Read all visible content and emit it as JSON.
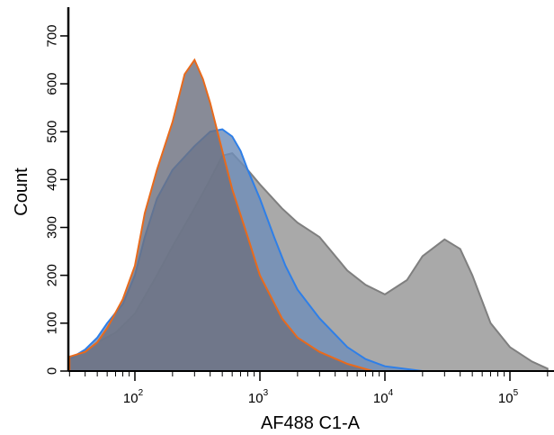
{
  "chart_data": {
    "type": "histogram",
    "xlabel": "AF488 C1-A",
    "ylabel": "Count",
    "x_scale": "log",
    "xlim": [
      30,
      220000
    ],
    "ylim": [
      0,
      760
    ],
    "x_ticks": [
      {
        "value": 100,
        "base": "10",
        "exp": "2"
      },
      {
        "value": 1000,
        "base": "10",
        "exp": "3"
      },
      {
        "value": 10000,
        "base": "10",
        "exp": "4"
      },
      {
        "value": 100000,
        "base": "10",
        "exp": "5"
      }
    ],
    "y_ticks": [
      0,
      100,
      200,
      300,
      400,
      500,
      600,
      700
    ],
    "grid": false,
    "series": [
      {
        "color": "#a9a9a9",
        "stroke": "#7f7f7f",
        "points": [
          [
            30,
            25
          ],
          [
            40,
            40
          ],
          [
            50,
            60
          ],
          [
            70,
            80
          ],
          [
            100,
            120
          ],
          [
            150,
            200
          ],
          [
            200,
            260
          ],
          [
            300,
            340
          ],
          [
            400,
            400
          ],
          [
            500,
            450
          ],
          [
            600,
            455
          ],
          [
            800,
            420
          ],
          [
            1000,
            390
          ],
          [
            1500,
            340
          ],
          [
            2000,
            310
          ],
          [
            3000,
            280
          ],
          [
            5000,
            210
          ],
          [
            7000,
            180
          ],
          [
            10000,
            160
          ],
          [
            15000,
            190
          ],
          [
            20000,
            240
          ],
          [
            30000,
            275
          ],
          [
            40000,
            255
          ],
          [
            50000,
            200
          ],
          [
            70000,
            100
          ],
          [
            100000,
            50
          ],
          [
            150000,
            20
          ],
          [
            200000,
            5
          ]
        ]
      },
      {
        "color": "#6f8db8",
        "stroke": "#2e7fe8",
        "points": [
          [
            30,
            25
          ],
          [
            40,
            45
          ],
          [
            50,
            70
          ],
          [
            60,
            100
          ],
          [
            80,
            140
          ],
          [
            100,
            200
          ],
          [
            120,
            280
          ],
          [
            150,
            360
          ],
          [
            200,
            420
          ],
          [
            300,
            470
          ],
          [
            400,
            500
          ],
          [
            500,
            505
          ],
          [
            600,
            490
          ],
          [
            700,
            460
          ],
          [
            800,
            420
          ],
          [
            1000,
            360
          ],
          [
            1300,
            280
          ],
          [
            1600,
            220
          ],
          [
            2000,
            170
          ],
          [
            3000,
            110
          ],
          [
            5000,
            50
          ],
          [
            7000,
            25
          ],
          [
            10000,
            10
          ],
          [
            20000,
            0
          ]
        ]
      },
      {
        "color": "#6e7180",
        "stroke": "#e86a1c",
        "points": [
          [
            30,
            30
          ],
          [
            40,
            40
          ],
          [
            50,
            60
          ],
          [
            60,
            90
          ],
          [
            80,
            150
          ],
          [
            100,
            220
          ],
          [
            120,
            330
          ],
          [
            150,
            420
          ],
          [
            200,
            520
          ],
          [
            250,
            620
          ],
          [
            300,
            650
          ],
          [
            350,
            610
          ],
          [
            400,
            560
          ],
          [
            500,
            460
          ],
          [
            600,
            380
          ],
          [
            800,
            280
          ],
          [
            1000,
            200
          ],
          [
            1500,
            110
          ],
          [
            2000,
            70
          ],
          [
            3000,
            40
          ],
          [
            5000,
            15
          ],
          [
            8000,
            0
          ]
        ]
      }
    ]
  }
}
